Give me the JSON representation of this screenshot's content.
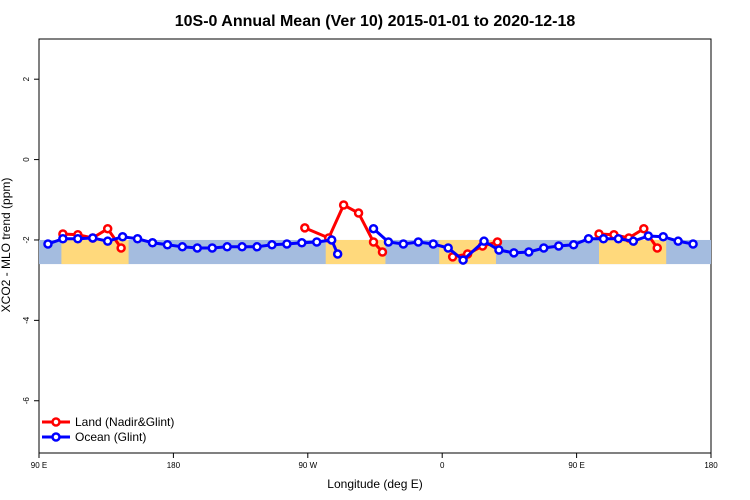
{
  "chart_data": {
    "type": "line",
    "title": "10S-0 Annual Mean (Ver 10)   2015-01-01 to 2020-12-18",
    "xlabel": "Longitude (deg E)",
    "ylabel": "XCO2 - MLO trend (ppm)",
    "xlim": [
      90,
      540
    ],
    "ylim": [
      -7.3,
      3
    ],
    "x_ticks": [
      {
        "value": 90,
        "label": "90 E"
      },
      {
        "value": 180,
        "label": "180"
      },
      {
        "value": 270,
        "label": "90 W"
      },
      {
        "value": 360,
        "label": "0"
      },
      {
        "value": 450,
        "label": "90 E"
      },
      {
        "value": 540,
        "label": "180"
      }
    ],
    "y_ticks": [
      {
        "value": 2,
        "label": "2"
      },
      {
        "value": 0,
        "label": "0"
      },
      {
        "value": -2,
        "label": "-2"
      },
      {
        "value": -4,
        "label": "-4"
      },
      {
        "value": -6,
        "label": "-6"
      }
    ],
    "band": {
      "y_min": -2.6,
      "y_max": -2.0,
      "ocean_color": "#a4bcdf",
      "land_color": "#ffd97c"
    },
    "land_regions": [
      [
        105,
        150
      ],
      [
        282,
        322
      ],
      [
        358,
        396
      ],
      [
        465,
        510
      ]
    ],
    "legend_position": "bottom-left",
    "series": [
      {
        "name": "Land (Nadir&Glint)",
        "color": "#ff0000",
        "segments": [
          [
            [
              106,
              -1.85
            ],
            [
              116,
              -1.87
            ],
            [
              126,
              -1.95
            ],
            [
              136,
              -1.72
            ],
            [
              145,
              -2.2
            ]
          ],
          [
            [
              268,
              -1.7
            ],
            [
              284,
              -1.95
            ],
            [
              294,
              -1.13
            ],
            [
              304,
              -1.33
            ],
            [
              314,
              -2.05
            ],
            [
              320,
              -2.3
            ]
          ],
          [
            [
              367,
              -2.42
            ],
            [
              377,
              -2.35
            ],
            [
              387,
              -2.15
            ],
            [
              397,
              -2.05
            ]
          ],
          [
            [
              465,
              -1.85
            ],
            [
              475,
              -1.87
            ],
            [
              485,
              -1.95
            ],
            [
              495,
              -1.72
            ],
            [
              504,
              -2.2
            ]
          ]
        ]
      },
      {
        "name": "Ocean (Glint)",
        "color": "#0000ff",
        "segments": [
          [
            [
              96,
              -2.1
            ],
            [
              106,
              -1.97
            ],
            [
              116,
              -1.97
            ],
            [
              126,
              -1.95
            ],
            [
              136,
              -2.03
            ],
            [
              146,
              -1.92
            ],
            [
              156,
              -1.97
            ],
            [
              166,
              -2.07
            ],
            [
              176,
              -2.12
            ],
            [
              186,
              -2.17
            ],
            [
              196,
              -2.2
            ],
            [
              206,
              -2.2
            ],
            [
              216,
              -2.17
            ],
            [
              226,
              -2.17
            ],
            [
              236,
              -2.17
            ],
            [
              246,
              -2.12
            ],
            [
              256,
              -2.1
            ],
            [
              266,
              -2.07
            ],
            [
              276,
              -2.05
            ],
            [
              286,
              -2.0
            ],
            [
              290,
              -2.35
            ]
          ],
          [
            [
              314,
              -1.72
            ],
            [
              324,
              -2.05
            ],
            [
              334,
              -2.1
            ],
            [
              344,
              -2.05
            ],
            [
              354,
              -2.1
            ],
            [
              364,
              -2.2
            ],
            [
              374,
              -2.5
            ],
            [
              388,
              -2.03
            ],
            [
              398,
              -2.25
            ],
            [
              408,
              -2.32
            ],
            [
              418,
              -2.3
            ],
            [
              428,
              -2.2
            ],
            [
              438,
              -2.15
            ],
            [
              448,
              -2.12
            ],
            [
              458,
              -1.97
            ],
            [
              468,
              -1.97
            ],
            [
              478,
              -1.97
            ],
            [
              488,
              -2.03
            ],
            [
              498,
              -1.9
            ],
            [
              508,
              -1.92
            ],
            [
              518,
              -2.03
            ],
            [
              528,
              -2.1
            ]
          ]
        ]
      }
    ]
  }
}
